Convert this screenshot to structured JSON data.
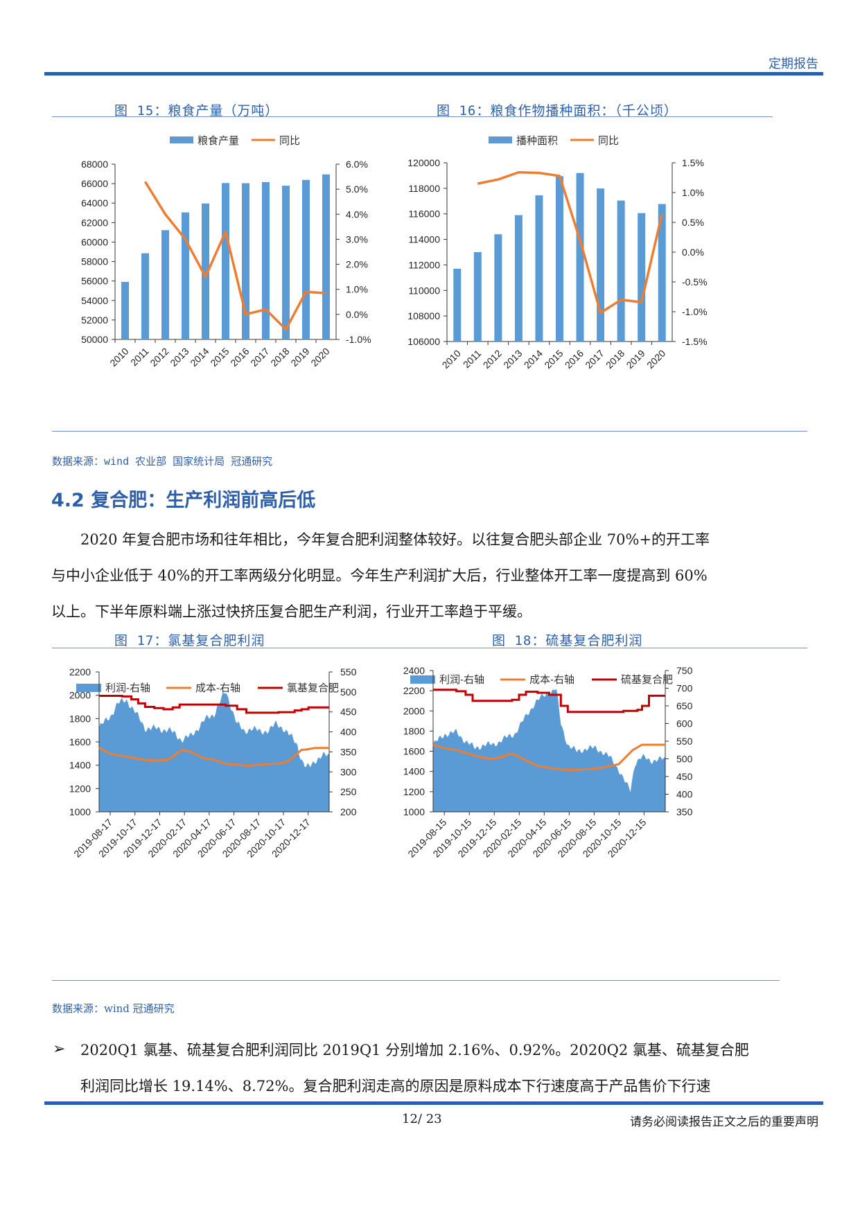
{
  "header": {
    "label": "定期报告"
  },
  "fig15": {
    "caption": "图 15：粮食产量（万吨）",
    "chart_data": {
      "type": "bar",
      "categories": [
        "2010",
        "2011",
        "2012",
        "2013",
        "2014",
        "2015",
        "2016",
        "2017",
        "2018",
        "2019",
        "2020"
      ],
      "series": [
        {
          "name": "粮食产量",
          "type": "bar",
          "axis": "left",
          "values": [
            55911,
            58849,
            61223,
            63048,
            63965,
            66060,
            66044,
            66161,
            65789,
            66384,
            66949
          ]
        },
        {
          "name": "同比",
          "type": "line",
          "axis": "right",
          "values": [
            null,
            5.3,
            4.0,
            3.0,
            1.5,
            3.3,
            0.0,
            0.2,
            -0.6,
            0.9,
            0.85
          ]
        }
      ],
      "ylim": [
        50000,
        68000
      ],
      "yticks": [
        "50000",
        "52000",
        "54000",
        "56000",
        "58000",
        "60000",
        "62000",
        "64000",
        "66000",
        "68000"
      ],
      "y2lim": [
        -1.0,
        6.0
      ],
      "y2ticks": [
        "-1.0%",
        "0.0%",
        "1.0%",
        "2.0%",
        "3.0%",
        "4.0%",
        "5.0%",
        "6.0%"
      ],
      "legend": "top",
      "colors": {
        "bar": "#5b9bd5",
        "line": "#ed7d31"
      }
    }
  },
  "fig16": {
    "caption": "图 16：粮食作物播种面积：（千公顷）",
    "chart_data": {
      "type": "bar",
      "categories": [
        "2010",
        "2011",
        "2012",
        "2013",
        "2014",
        "2015",
        "2016",
        "2017",
        "2018",
        "2019",
        "2020"
      ],
      "series": [
        {
          "name": "播种面积",
          "type": "bar",
          "axis": "left",
          "values": [
            111700,
            113000,
            114400,
            115900,
            117450,
            118950,
            119200,
            117990,
            117040,
            116060,
            116770
          ]
        },
        {
          "name": "同比",
          "type": "line",
          "axis": "right",
          "values": [
            null,
            1.15,
            1.22,
            1.34,
            1.33,
            1.28,
            0.2,
            -1.02,
            -0.8,
            -0.84,
            0.64
          ]
        }
      ],
      "ylim": [
        106000,
        120000
      ],
      "yticks": [
        "106000",
        "108000",
        "110000",
        "112000",
        "114000",
        "116000",
        "118000",
        "120000"
      ],
      "y2lim": [
        -1.5,
        1.5
      ],
      "y2ticks": [
        "-1.5%",
        "-1.0%",
        "-0.5%",
        "0.0%",
        "0.5%",
        "1.0%",
        "1.5%"
      ],
      "legend": "top",
      "colors": {
        "bar": "#5b9bd5",
        "line": "#ed7d31"
      }
    }
  },
  "source1": "数据来源：wind 农业部 国家统计局 冠通研究",
  "section": {
    "title": "4.2 复合肥：生产利润前高后低",
    "paragraph": [
      "2020 年复合肥市场和往年相比，今年复合肥利润整体较好。以往复合肥头部企业 70%+的开工率",
      "与中小企业低于 40%的开工率两级分化明显。今年生产利润扩大后，行业整体开工率一度提高到 60%",
      "以上。下半年原料端上涨过快挤压复合肥生产利润，行业开工率趋于平缓。"
    ]
  },
  "fig17": {
    "caption": "图 17：氯基复合肥利润",
    "chart_data": {
      "type": "area",
      "x_ticks": [
        "2019-08-17",
        "2019-10-17",
        "2019-12-17",
        "2020-02-17",
        "2020-04-17",
        "2020-06-17",
        "2020-08-17",
        "2020-10-17",
        "2020-12-17"
      ],
      "legend_items": [
        "利润-右轴",
        "成本-右轴",
        "氯基复合肥"
      ],
      "ylim": [
        1000,
        2200
      ],
      "yticks": [
        "1000",
        "1200",
        "1400",
        "1600",
        "1800",
        "2000",
        "2200"
      ],
      "y2lim": [
        200,
        550
      ],
      "y2ticks": [
        "200",
        "250",
        "300",
        "350",
        "400",
        "450",
        "500",
        "550"
      ],
      "profit_right": [
        [
          0,
          410
        ],
        [
          0.05,
          440
        ],
        [
          0.08,
          470
        ],
        [
          0.1,
          475
        ],
        [
          0.12,
          480
        ],
        [
          0.15,
          455
        ],
        [
          0.2,
          410
        ],
        [
          0.25,
          408
        ],
        [
          0.3,
          405
        ],
        [
          0.33,
          395
        ],
        [
          0.36,
          380
        ],
        [
          0.4,
          390
        ],
        [
          0.43,
          410
        ],
        [
          0.46,
          430
        ],
        [
          0.5,
          445
        ],
        [
          0.52,
          470
        ],
        [
          0.55,
          500
        ],
        [
          0.57,
          470
        ],
        [
          0.6,
          420
        ],
        [
          0.63,
          400
        ],
        [
          0.66,
          410
        ],
        [
          0.7,
          400
        ],
        [
          0.74,
          405
        ],
        [
          0.77,
          420
        ],
        [
          0.8,
          410
        ],
        [
          0.83,
          390
        ],
        [
          0.86,
          370
        ],
        [
          0.88,
          330
        ],
        [
          0.9,
          310
        ],
        [
          0.92,
          315
        ],
        [
          0.94,
          330
        ],
        [
          0.97,
          340
        ],
        [
          1.0,
          340
        ]
      ],
      "cost_right": [
        [
          0,
          360
        ],
        [
          0.05,
          345
        ],
        [
          0.1,
          340
        ],
        [
          0.15,
          335
        ],
        [
          0.2,
          330
        ],
        [
          0.25,
          328
        ],
        [
          0.3,
          330
        ],
        [
          0.33,
          342
        ],
        [
          0.36,
          355
        ],
        [
          0.4,
          350
        ],
        [
          0.45,
          335
        ],
        [
          0.5,
          330
        ],
        [
          0.55,
          320
        ],
        [
          0.6,
          318
        ],
        [
          0.65,
          315
        ],
        [
          0.7,
          318
        ],
        [
          0.75,
          320
        ],
        [
          0.8,
          322
        ],
        [
          0.83,
          330
        ],
        [
          0.86,
          345
        ],
        [
          0.88,
          355
        ],
        [
          0.9,
          356
        ],
        [
          0.94,
          360
        ],
        [
          1.0,
          360
        ]
      ],
      "price_left": [
        [
          0,
          1995
        ],
        [
          0.05,
          1995
        ],
        [
          0.1,
          1990
        ],
        [
          0.14,
          1965
        ],
        [
          0.17,
          1930
        ],
        [
          0.2,
          1900
        ],
        [
          0.24,
          1890
        ],
        [
          0.28,
          1880
        ],
        [
          0.32,
          1895
        ],
        [
          0.35,
          1920
        ],
        [
          0.4,
          1920
        ],
        [
          0.5,
          1920
        ],
        [
          0.55,
          1910
        ],
        [
          0.6,
          1880
        ],
        [
          0.64,
          1850
        ],
        [
          0.68,
          1850
        ],
        [
          0.72,
          1850
        ],
        [
          0.78,
          1855
        ],
        [
          0.85,
          1870
        ],
        [
          0.88,
          1880
        ],
        [
          0.91,
          1895
        ],
        [
          1.0,
          1895
        ]
      ],
      "colors": {
        "profit": "#5b9bd5",
        "cost": "#ed7d31",
        "price": "#c00000"
      }
    }
  },
  "fig18": {
    "caption": "图 18：硫基复合肥利润",
    "chart_data": {
      "type": "area",
      "x_ticks": [
        "2019-08-15",
        "2019-10-15",
        "2019-12-15",
        "2020-02-15",
        "2020-04-15",
        "2020-06-15",
        "2020-08-15",
        "2020-10-15",
        "2020-12-15"
      ],
      "legend_items": [
        "利润-右轴",
        "成本-右轴",
        "硫基复合肥"
      ],
      "ylim": [
        1000,
        2400
      ],
      "yticks": [
        "1000",
        "1200",
        "1400",
        "1600",
        "1800",
        "2000",
        "2200",
        "2400"
      ],
      "y2lim": [
        350,
        750
      ],
      "y2ticks": [
        "350",
        "400",
        "450",
        "500",
        "550",
        "600",
        "650",
        "700",
        "750"
      ],
      "profit_right": [
        [
          0,
          540
        ],
        [
          0.05,
          570
        ],
        [
          0.1,
          575
        ],
        [
          0.14,
          550
        ],
        [
          0.18,
          530
        ],
        [
          0.22,
          540
        ],
        [
          0.26,
          540
        ],
        [
          0.3,
          555
        ],
        [
          0.35,
          570
        ],
        [
          0.4,
          620
        ],
        [
          0.44,
          660
        ],
        [
          0.48,
          680
        ],
        [
          0.51,
          690
        ],
        [
          0.53,
          700
        ],
        [
          0.55,
          600
        ],
        [
          0.58,
          540
        ],
        [
          0.62,
          520
        ],
        [
          0.66,
          530
        ],
        [
          0.7,
          530
        ],
        [
          0.73,
          520
        ],
        [
          0.76,
          505
        ],
        [
          0.8,
          470
        ],
        [
          0.83,
          430
        ],
        [
          0.85,
          410
        ],
        [
          0.87,
          490
        ],
        [
          0.9,
          505
        ],
        [
          0.94,
          495
        ],
        [
          1.0,
          500
        ]
      ],
      "cost_right": [
        [
          0,
          540
        ],
        [
          0.05,
          530
        ],
        [
          0.1,
          525
        ],
        [
          0.15,
          515
        ],
        [
          0.2,
          505
        ],
        [
          0.25,
          500
        ],
        [
          0.3,
          505
        ],
        [
          0.33,
          515
        ],
        [
          0.36,
          510
        ],
        [
          0.4,
          495
        ],
        [
          0.45,
          480
        ],
        [
          0.5,
          475
        ],
        [
          0.55,
          470
        ],
        [
          0.6,
          468
        ],
        [
          0.65,
          470
        ],
        [
          0.7,
          472
        ],
        [
          0.75,
          478
        ],
        [
          0.8,
          485
        ],
        [
          0.83,
          505
        ],
        [
          0.86,
          525
        ],
        [
          0.9,
          540
        ],
        [
          0.94,
          540
        ],
        [
          1.0,
          540
        ]
      ],
      "price_left": [
        [
          0,
          2210
        ],
        [
          0.05,
          2210
        ],
        [
          0.1,
          2195
        ],
        [
          0.14,
          2160
        ],
        [
          0.17,
          2100
        ],
        [
          0.2,
          2100
        ],
        [
          0.3,
          2100
        ],
        [
          0.34,
          2110
        ],
        [
          0.37,
          2160
        ],
        [
          0.4,
          2190
        ],
        [
          0.45,
          2180
        ],
        [
          0.5,
          2160
        ],
        [
          0.55,
          2050
        ],
        [
          0.58,
          1990
        ],
        [
          0.65,
          1990
        ],
        [
          0.75,
          1990
        ],
        [
          0.82,
          2000
        ],
        [
          0.88,
          2010
        ],
        [
          0.9,
          2050
        ],
        [
          0.93,
          2150
        ],
        [
          1.0,
          2150
        ]
      ],
      "colors": {
        "profit": "#5b9bd5",
        "cost": "#ed7d31",
        "price": "#c00000"
      }
    }
  },
  "source2": "数据来源：wind 冠通研究",
  "bullet": {
    "line1": "2020Q1 氯基、硫基复合肥利润同比 2019Q1 分别增加 2.16%、0.92%。2020Q2 氯基、硫基复合肥",
    "line2": "利润同比增长 19.14%、8.72%。复合肥利润走高的原因是原料成本下行速度高于产品售价下行速"
  },
  "footer": {
    "page": "12/ 23",
    "note": "请务必阅读报告正文之后的重要声明"
  }
}
